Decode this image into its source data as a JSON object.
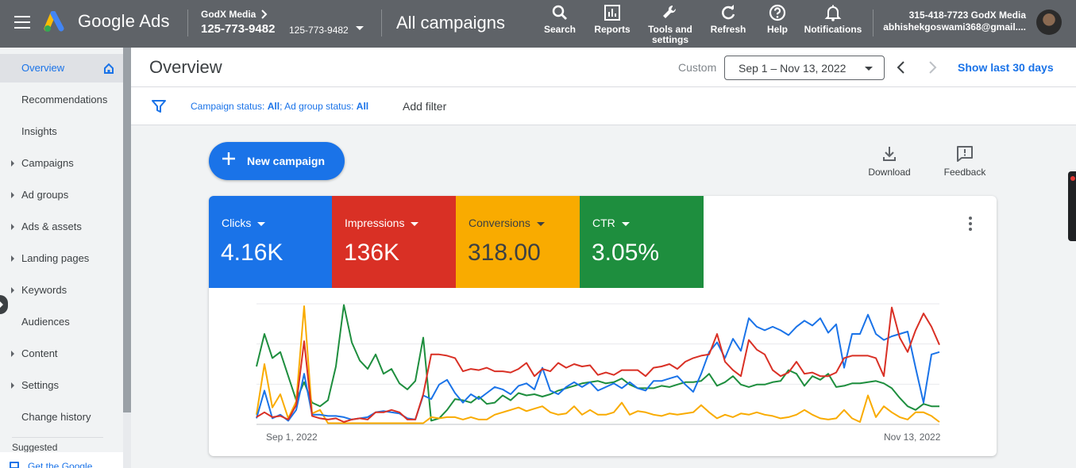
{
  "topbar": {
    "product": "Google Ads",
    "account_name": "GodX Media",
    "account_id": "125-773-9482",
    "account_id_small": "125-773-9482",
    "page": "All campaigns",
    "tools": [
      {
        "label": "Search",
        "icon": "search-icon"
      },
      {
        "label": "Reports",
        "icon": "reports-icon"
      },
      {
        "label": "Tools and settings",
        "icon": "wrench-icon"
      },
      {
        "label": "Refresh",
        "icon": "refresh-icon"
      },
      {
        "label": "Help",
        "icon": "help-icon"
      },
      {
        "label": "Notifications",
        "icon": "bell-icon"
      }
    ],
    "user_line1": "315-418-7723 GodX Media",
    "user_line2": "abhishekgoswami368@gmail...."
  },
  "sidebar": {
    "items": [
      {
        "label": "Overview",
        "active": true,
        "caret": false
      },
      {
        "label": "Recommendations",
        "active": false,
        "caret": false
      },
      {
        "label": "Insights",
        "active": false,
        "caret": false
      },
      {
        "label": "Campaigns",
        "active": false,
        "caret": true
      },
      {
        "label": "Ad groups",
        "active": false,
        "caret": true
      },
      {
        "label": "Ads & assets",
        "active": false,
        "caret": true
      },
      {
        "label": "Landing pages",
        "active": false,
        "caret": true
      },
      {
        "label": "Keywords",
        "active": false,
        "caret": true
      },
      {
        "label": "Audiences",
        "active": false,
        "caret": false
      },
      {
        "label": "Content",
        "active": false,
        "caret": true
      },
      {
        "label": "Settings",
        "active": false,
        "caret": true
      },
      {
        "label": "Change history",
        "active": false,
        "caret": false
      }
    ],
    "suggested_label": "Suggested",
    "suggested_link": "Get the Google"
  },
  "header": {
    "title": "Overview",
    "custom_label": "Custom",
    "date_range": "Sep 1 – Nov 13, 2022",
    "show_last": "Show last 30 days"
  },
  "filters": {
    "campaign_status_label": "Campaign status: ",
    "campaign_status_value": "All",
    "ad_group_status_label": "; Ad group status: ",
    "ad_group_status_value": "All",
    "add_filter": "Add filter"
  },
  "actions": {
    "new_campaign": "New campaign",
    "download": "Download",
    "feedback": "Feedback"
  },
  "metrics": [
    {
      "name": "Clicks",
      "value": "4.16K",
      "color": "#1a73e8"
    },
    {
      "name": "Impressions",
      "value": "136K",
      "color": "#d93025"
    },
    {
      "name": "Conversions",
      "value": "318.00",
      "color": "#f9ab00"
    },
    {
      "name": "CTR",
      "value": "3.05%",
      "color": "#1e8e3e"
    }
  ],
  "chart_data": {
    "type": "line",
    "x_start": "Sep 1, 2022",
    "x_end": "Nov 13, 2022",
    "ylim": [
      0,
      1
    ],
    "grid": true,
    "normalized": true,
    "series": [
      {
        "name": "Clicks",
        "color": "#1a73e8",
        "values": [
          0.05,
          0.28,
          0.05,
          0.08,
          0.03,
          0.12,
          0.42,
          0.08,
          0.08,
          0.07,
          0.07,
          0.06,
          0.04,
          0.05,
          0.06,
          0.1,
          0.11,
          0.1,
          0.09,
          0.05,
          0.04,
          0.24,
          0.21,
          0.33,
          0.37,
          0.26,
          0.18,
          0.25,
          0.21,
          0.26,
          0.31,
          0.29,
          0.25,
          0.32,
          0.34,
          0.29,
          0.47,
          0.28,
          0.25,
          0.31,
          0.35,
          0.31,
          0.35,
          0.28,
          0.31,
          0.34,
          0.3,
          0.35,
          0.3,
          0.28,
          0.36,
          0.36,
          0.38,
          0.4,
          0.33,
          0.27,
          0.42,
          0.6,
          0.68,
          0.55,
          0.71,
          0.61,
          0.88,
          0.81,
          0.78,
          0.81,
          0.78,
          0.74,
          0.81,
          0.86,
          0.82,
          0.88,
          0.76,
          0.83,
          0.47,
          0.75,
          0.75,
          0.91,
          0.75,
          0.7,
          0.73,
          0.75,
          0.77,
          0.47,
          0.18,
          0.58,
          0.6
        ]
      },
      {
        "name": "Impressions",
        "color": "#d93025",
        "values": [
          0.06,
          0.1,
          0.06,
          0.07,
          0.04,
          0.16,
          0.69,
          0.07,
          0.05,
          0.04,
          0.05,
          0.02,
          0.04,
          0.05,
          0.04,
          0.1,
          0.1,
          0.12,
          0.1,
          0.04,
          0.04,
          0.25,
          0.58,
          0.58,
          0.57,
          0.55,
          0.44,
          0.46,
          0.45,
          0.47,
          0.44,
          0.44,
          0.43,
          0.46,
          0.51,
          0.4,
          0.46,
          0.44,
          0.51,
          0.47,
          0.5,
          0.48,
          0.49,
          0.41,
          0.43,
          0.41,
          0.45,
          0.45,
          0.45,
          0.4,
          0.47,
          0.48,
          0.5,
          0.46,
          0.52,
          0.55,
          0.57,
          0.58,
          0.75,
          0.52,
          0.45,
          0.4,
          0.7,
          0.62,
          0.58,
          0.45,
          0.4,
          0.43,
          0.52,
          0.42,
          0.43,
          0.4,
          0.4,
          0.43,
          0.55,
          0.57,
          0.57,
          0.57,
          0.55,
          0.4,
          0.97,
          0.72,
          0.6,
          0.78,
          0.92,
          0.81,
          0.66
        ]
      },
      {
        "name": "Conversions",
        "color": "#f9ab00",
        "values": [
          0.08,
          0.5,
          0.14,
          0.25,
          0.05,
          0.19,
          0.98,
          0.09,
          0.12,
          0.01,
          0.01,
          0.01,
          0.01,
          0.01,
          0.01,
          0.01,
          0.01,
          0.01,
          0.01,
          0.01,
          0.01,
          0.01,
          0.06,
          0.05,
          0.06,
          0.06,
          0.04,
          0.06,
          0.04,
          0.04,
          0.08,
          0.1,
          0.12,
          0.14,
          0.11,
          0.13,
          0.15,
          0.1,
          0.08,
          0.09,
          0.15,
          0.08,
          0.12,
          0.08,
          0.08,
          0.1,
          0.18,
          0.08,
          0.11,
          0.1,
          0.08,
          0.07,
          0.09,
          0.08,
          0.09,
          0.1,
          0.16,
          0.1,
          0.05,
          0.08,
          0.06,
          0.09,
          0.08,
          0.1,
          0.08,
          0.07,
          0.05,
          0.06,
          0.08,
          0.12,
          0.08,
          0.05,
          0.04,
          0.05,
          0.12,
          0.05,
          0.02,
          0.24,
          0.06,
          0.15,
          0.1,
          0.06,
          0.04,
          0.1,
          0.1,
          0.07,
          0.02
        ]
      },
      {
        "name": "CTR",
        "color": "#1e8e3e",
        "values": [
          0.48,
          0.75,
          0.55,
          0.6,
          0.4,
          0.2,
          0.35,
          0.18,
          0.15,
          0.2,
          0.48,
          0.99,
          0.68,
          0.53,
          0.46,
          0.58,
          0.42,
          0.46,
          0.34,
          0.29,
          0.36,
          0.72,
          0.03,
          0.05,
          0.12,
          0.21,
          0.2,
          0.18,
          0.23,
          0.17,
          0.18,
          0.24,
          0.2,
          0.26,
          0.24,
          0.25,
          0.23,
          0.25,
          0.28,
          0.3,
          0.32,
          0.34,
          0.35,
          0.36,
          0.34,
          0.35,
          0.38,
          0.33,
          0.3,
          0.3,
          0.3,
          0.32,
          0.31,
          0.33,
          0.35,
          0.35,
          0.36,
          0.42,
          0.32,
          0.35,
          0.4,
          0.33,
          0.31,
          0.33,
          0.33,
          0.35,
          0.36,
          0.45,
          0.42,
          0.32,
          0.4,
          0.37,
          0.42,
          0.31,
          0.32,
          0.34,
          0.34,
          0.35,
          0.36,
          0.34,
          0.3,
          0.22,
          0.15,
          0.12,
          0.17,
          0.15,
          0.15
        ]
      }
    ]
  }
}
